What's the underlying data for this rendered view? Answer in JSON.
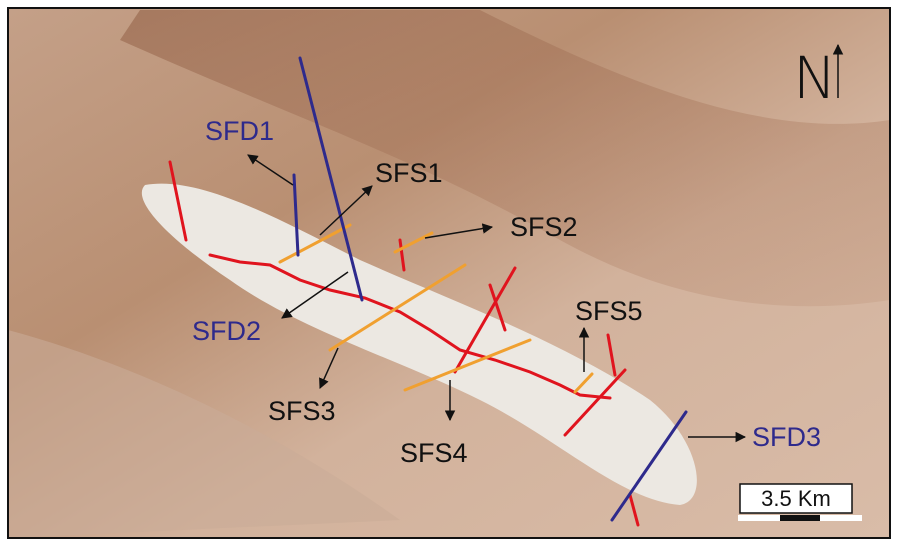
{
  "map": {
    "labels": [
      "SFD1",
      "SFS1",
      "SFS2",
      "SFD2",
      "SFS5",
      "SFS3",
      "SFS4",
      "SFD3"
    ],
    "scale_bar": "3.5 Km",
    "north": "N"
  }
}
